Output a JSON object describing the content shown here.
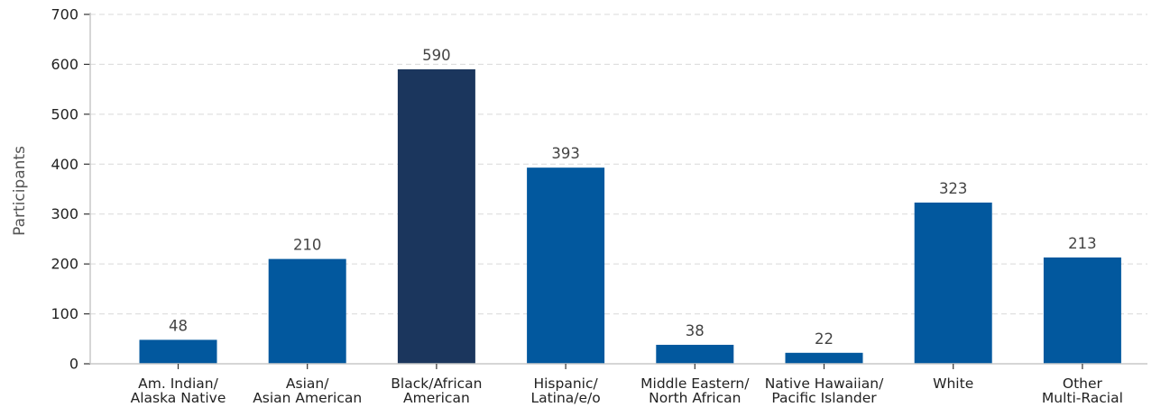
{
  "chart_data": {
    "type": "bar",
    "title": "",
    "xlabel": "",
    "ylabel": "Participants",
    "ylim": [
      0,
      700
    ],
    "yticks": [
      0,
      100,
      200,
      300,
      400,
      500,
      600,
      700
    ],
    "grid": "horizontal dashed",
    "legend": "none",
    "categories": [
      [
        "Am. Indian/",
        "Alaska Native"
      ],
      [
        "Asian/",
        "Asian American"
      ],
      [
        "Black/African",
        "American"
      ],
      [
        "Hispanic/",
        "Latina/e/o"
      ],
      [
        "Middle Eastern/",
        "North African"
      ],
      [
        "Native Hawaiian/",
        "Pacific Islander"
      ],
      [
        "White"
      ],
      [
        "Other",
        "Multi-Racial"
      ]
    ],
    "values": [
      48,
      210,
      590,
      393,
      38,
      22,
      323,
      213
    ],
    "colors": {
      "default": "#02589E",
      "highlight": "#1B365D"
    },
    "highlight_index": 2
  }
}
